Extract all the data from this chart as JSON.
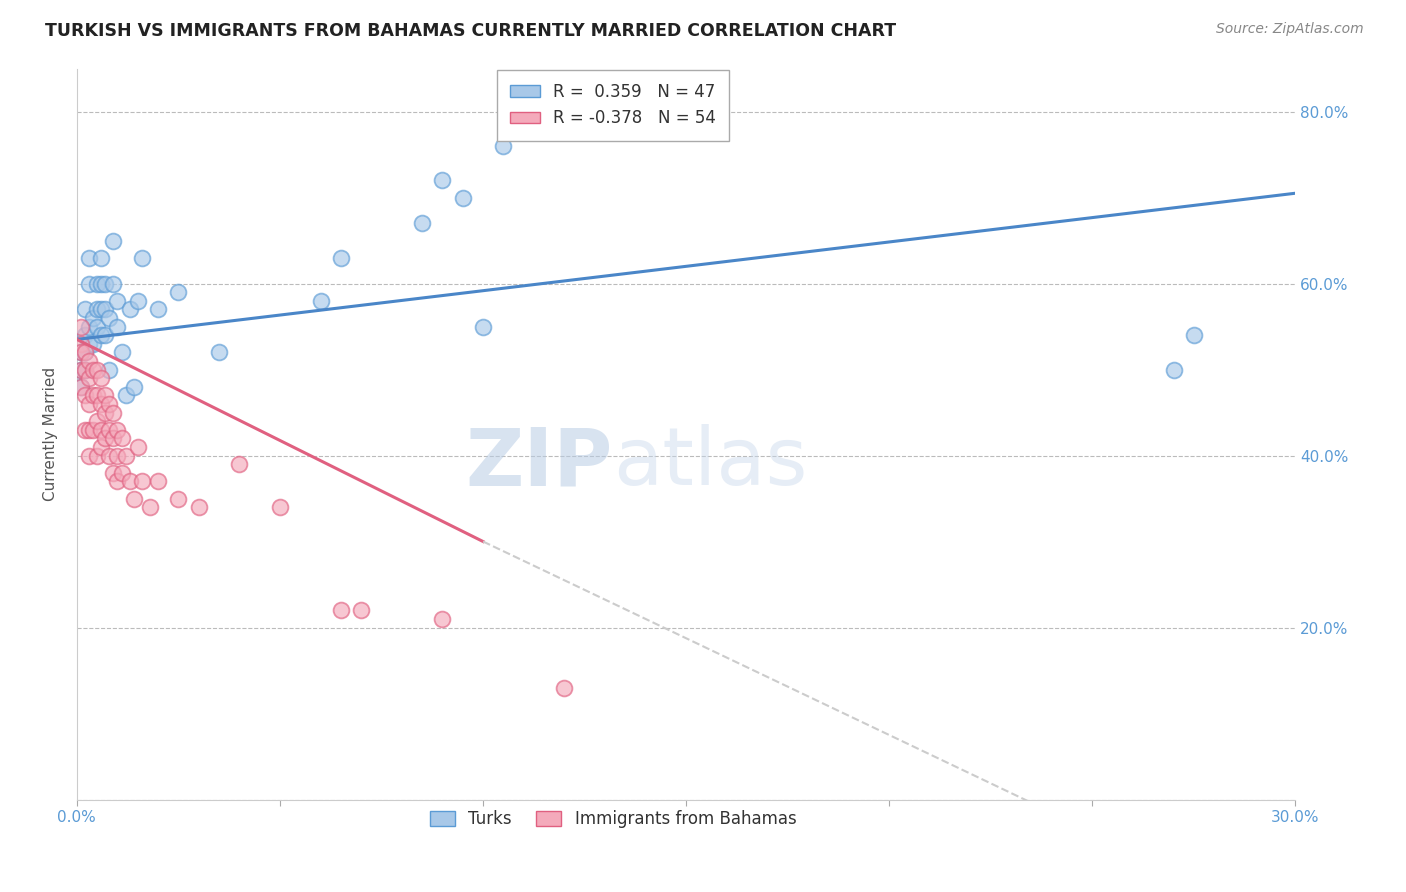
{
  "title": "TURKISH VS IMMIGRANTS FROM BAHAMAS CURRENTLY MARRIED CORRELATION CHART",
  "source": "Source: ZipAtlas.com",
  "ylabel": "Currently Married",
  "xlim": [
    0.0,
    0.3
  ],
  "ylim": [
    0.0,
    0.85
  ],
  "xticks": [
    0.0,
    0.05,
    0.1,
    0.15,
    0.2,
    0.25,
    0.3
  ],
  "xticklabels": [
    "0.0%",
    "",
    "",
    "",
    "",
    "",
    "30.0%"
  ],
  "yticks": [
    0.0,
    0.2,
    0.4,
    0.6,
    0.8
  ],
  "right_yticklabels": [
    "",
    "20.0%",
    "40.0%",
    "60.0%",
    "80.0%"
  ],
  "turks_R": 0.359,
  "turks_N": 47,
  "bahamas_R": -0.378,
  "bahamas_N": 54,
  "turks_color": "#A8C8E8",
  "bahamas_color": "#F4AABB",
  "turks_edge_color": "#5B9BD5",
  "bahamas_edge_color": "#E06080",
  "turks_line_color": "#4A86C8",
  "bahamas_line_color": "#E06080",
  "bahamas_dash_color": "#CCCCCC",
  "turks_line": [
    0.0,
    0.3,
    0.535,
    0.705
  ],
  "bahamas_line_solid": [
    0.0,
    0.1,
    0.535,
    0.3
  ],
  "bahamas_line_dash": [
    0.1,
    0.3,
    0.3,
    -0.15
  ],
  "turks_scatter_x": [
    0.001,
    0.001,
    0.001,
    0.002,
    0.002,
    0.002,
    0.002,
    0.003,
    0.003,
    0.003,
    0.003,
    0.004,
    0.004,
    0.005,
    0.005,
    0.005,
    0.006,
    0.006,
    0.006,
    0.006,
    0.007,
    0.007,
    0.007,
    0.008,
    0.008,
    0.009,
    0.009,
    0.01,
    0.01,
    0.011,
    0.012,
    0.013,
    0.014,
    0.015,
    0.016,
    0.02,
    0.025,
    0.035,
    0.06,
    0.065,
    0.085,
    0.09,
    0.095,
    0.1,
    0.105,
    0.27,
    0.275
  ],
  "turks_scatter_y": [
    0.52,
    0.5,
    0.48,
    0.54,
    0.52,
    0.5,
    0.57,
    0.55,
    0.53,
    0.6,
    0.63,
    0.53,
    0.56,
    0.55,
    0.57,
    0.6,
    0.54,
    0.57,
    0.6,
    0.63,
    0.57,
    0.6,
    0.54,
    0.56,
    0.5,
    0.6,
    0.65,
    0.58,
    0.55,
    0.52,
    0.47,
    0.57,
    0.48,
    0.58,
    0.63,
    0.57,
    0.59,
    0.52,
    0.58,
    0.63,
    0.67,
    0.72,
    0.7,
    0.55,
    0.76,
    0.5,
    0.54
  ],
  "bahamas_scatter_x": [
    0.001,
    0.001,
    0.001,
    0.001,
    0.001,
    0.002,
    0.002,
    0.002,
    0.002,
    0.003,
    0.003,
    0.003,
    0.003,
    0.003,
    0.004,
    0.004,
    0.004,
    0.005,
    0.005,
    0.005,
    0.005,
    0.006,
    0.006,
    0.006,
    0.006,
    0.007,
    0.007,
    0.007,
    0.008,
    0.008,
    0.008,
    0.009,
    0.009,
    0.009,
    0.01,
    0.01,
    0.01,
    0.011,
    0.011,
    0.012,
    0.013,
    0.014,
    0.015,
    0.016,
    0.018,
    0.02,
    0.025,
    0.03,
    0.04,
    0.05,
    0.065,
    0.07,
    0.09,
    0.12
  ],
  "bahamas_scatter_y": [
    0.55,
    0.53,
    0.52,
    0.5,
    0.48,
    0.52,
    0.5,
    0.47,
    0.43,
    0.51,
    0.49,
    0.46,
    0.43,
    0.4,
    0.5,
    0.47,
    0.43,
    0.5,
    0.47,
    0.44,
    0.4,
    0.49,
    0.46,
    0.43,
    0.41,
    0.47,
    0.45,
    0.42,
    0.46,
    0.43,
    0.4,
    0.45,
    0.42,
    0.38,
    0.43,
    0.4,
    0.37,
    0.42,
    0.38,
    0.4,
    0.37,
    0.35,
    0.41,
    0.37,
    0.34,
    0.37,
    0.35,
    0.34,
    0.39,
    0.34,
    0.22,
    0.22,
    0.21,
    0.13
  ],
  "watermark_zip": "ZIP",
  "watermark_atlas": "atlas",
  "grid_color": "#BBBBBB"
}
